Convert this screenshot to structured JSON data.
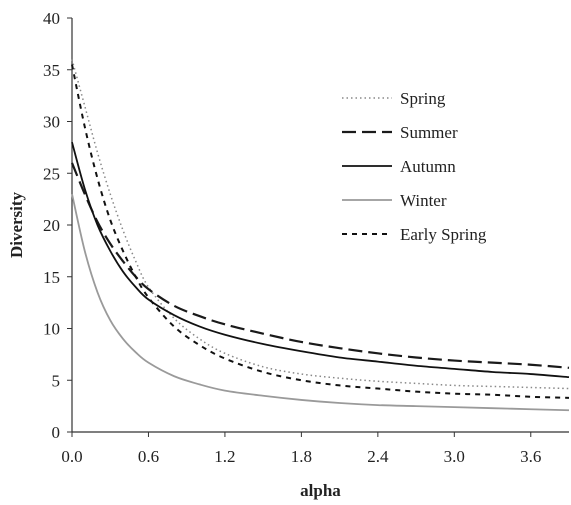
{
  "chart_data": {
    "type": "line",
    "title": "",
    "xlabel": "alpha",
    "ylabel": "Diversity",
    "xlim": [
      0.0,
      3.9
    ],
    "ylim": [
      0,
      40
    ],
    "xticks": [
      0.0,
      0.6,
      1.2,
      1.8,
      2.4,
      3.0,
      3.6
    ],
    "xtick_labels": [
      "0.0",
      "0.6",
      "1.2",
      "1.8",
      "2.4",
      "3.0",
      "3.6"
    ],
    "yticks": [
      0,
      5,
      10,
      15,
      20,
      25,
      30,
      35,
      40
    ],
    "ytick_labels": [
      "0",
      "5",
      "10",
      "15",
      "20",
      "25",
      "30",
      "35",
      "40"
    ],
    "grid": false,
    "legend_position": "right",
    "x": [
      0.0,
      0.1,
      0.2,
      0.3,
      0.4,
      0.5,
      0.6,
      0.8,
      1.0,
      1.2,
      1.5,
      1.8,
      2.1,
      2.4,
      2.7,
      3.0,
      3.3,
      3.6,
      3.9
    ],
    "series": [
      {
        "name": "Spring",
        "style": "dotted",
        "color": "#888888",
        "values": [
          36.0,
          31.5,
          27.0,
          23.0,
          19.5,
          16.5,
          14.0,
          11.0,
          9.0,
          7.6,
          6.3,
          5.6,
          5.2,
          4.9,
          4.7,
          4.5,
          4.4,
          4.3,
          4.2
        ]
      },
      {
        "name": "Summer",
        "style": "long-dash",
        "color": "#1a1a1a",
        "values": [
          26.0,
          23.0,
          20.3,
          18.2,
          16.5,
          15.0,
          13.8,
          12.2,
          11.2,
          10.4,
          9.5,
          8.7,
          8.1,
          7.6,
          7.2,
          6.9,
          6.7,
          6.5,
          6.2
        ]
      },
      {
        "name": "Autumn",
        "style": "solid",
        "color": "#111111",
        "values": [
          28.0,
          23.5,
          20.0,
          17.5,
          15.5,
          14.0,
          12.8,
          11.3,
          10.2,
          9.4,
          8.5,
          7.8,
          7.2,
          6.8,
          6.4,
          6.1,
          5.8,
          5.6,
          5.3
        ]
      },
      {
        "name": "Winter",
        "style": "solid",
        "color": "#9a9a9a",
        "values": [
          23.0,
          17.5,
          13.5,
          10.8,
          9.0,
          7.7,
          6.7,
          5.4,
          4.6,
          4.0,
          3.5,
          3.1,
          2.8,
          2.6,
          2.5,
          2.4,
          2.3,
          2.2,
          2.1
        ]
      },
      {
        "name": "Early Spring",
        "style": "short-dash",
        "color": "#111111",
        "values": [
          35.5,
          29.5,
          24.5,
          20.5,
          17.5,
          15.0,
          13.0,
          10.2,
          8.4,
          7.1,
          5.8,
          5.0,
          4.5,
          4.2,
          3.9,
          3.7,
          3.6,
          3.4,
          3.3
        ]
      }
    ]
  }
}
